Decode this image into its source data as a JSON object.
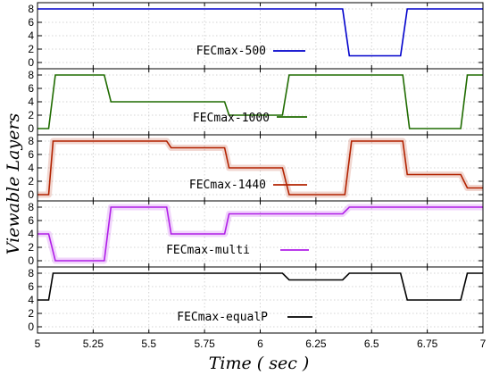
{
  "chart_data": {
    "type": "line",
    "xlabel": "Time ( sec )",
    "ylabel": "Viewable Layers",
    "xlim": [
      5,
      7
    ],
    "x_ticks": [
      "5",
      "5.25",
      "5.5",
      "5.75",
      "6",
      "6.25",
      "6.5",
      "6.75",
      "7"
    ],
    "grid": true,
    "legend_placement": "inside each panel, below center",
    "panels": [
      {
        "ylim": [
          0,
          8
        ],
        "y_ticks": [
          "0",
          "2",
          "4",
          "6",
          "8"
        ],
        "series": [
          {
            "name": "FECmax-500",
            "color": "#0000cc",
            "shadow": false,
            "x": [
              5.0,
              6.37,
              6.4,
              6.63,
              6.66,
              7.0
            ],
            "y": [
              8,
              8,
              1,
              1,
              8,
              8
            ]
          }
        ]
      },
      {
        "ylim": [
          0,
          8
        ],
        "y_ticks": [
          "0",
          "2",
          "4",
          "6",
          "8"
        ],
        "series": [
          {
            "name": "FECmax-1000",
            "color": "#1f6b00",
            "shadow": false,
            "x": [
              5.0,
              5.05,
              5.08,
              5.3,
              5.33,
              5.84,
              5.86,
              6.1,
              6.13,
              6.64,
              6.67,
              6.9,
              6.93,
              7.0
            ],
            "y": [
              0,
              0,
              8,
              8,
              4,
              4,
              2,
              2,
              8,
              8,
              0,
              0,
              8,
              8
            ]
          }
        ]
      },
      {
        "ylim": [
          0,
          8
        ],
        "y_ticks": [
          "0",
          "2",
          "4",
          "6",
          "8"
        ],
        "series": [
          {
            "name": "FECmax-1440",
            "color": "#b22200",
            "shadow": true,
            "x": [
              5.0,
              5.05,
              5.07,
              5.58,
              5.6,
              5.84,
              5.86,
              6.1,
              6.13,
              6.38,
              6.41,
              6.64,
              6.66,
              6.9,
              6.93,
              7.0
            ],
            "y": [
              0,
              0,
              8,
              8,
              7,
              7,
              4,
              4,
              0,
              0,
              8,
              8,
              3,
              3,
              1,
              1
            ]
          }
        ]
      },
      {
        "ylim": [
          0,
          8
        ],
        "y_ticks": [
          "0",
          "2",
          "4",
          "6",
          "8"
        ],
        "series": [
          {
            "name": "FECmax-multi",
            "color": "#b01ee8",
            "shadow": true,
            "x": [
              5.0,
              5.05,
              5.08,
              5.3,
              5.33,
              5.58,
              5.6,
              5.84,
              5.86,
              6.37,
              6.4,
              7.0
            ],
            "y": [
              4,
              4,
              0,
              0,
              8,
              8,
              4,
              4,
              7,
              7,
              8,
              8
            ]
          }
        ]
      },
      {
        "ylim": [
          0,
          8
        ],
        "y_ticks": [
          "0",
          "2",
          "4",
          "6",
          "8"
        ],
        "series": [
          {
            "name": "FECmax-equalP",
            "color": "#000000",
            "shadow": false,
            "x": [
              5.0,
              5.05,
              5.07,
              6.1,
              6.13,
              6.37,
              6.4,
              6.63,
              6.66,
              6.9,
              6.93,
              7.0
            ],
            "y": [
              4,
              4,
              8,
              8,
              7,
              7,
              8,
              8,
              4,
              4,
              8,
              8
            ]
          }
        ]
      }
    ]
  }
}
